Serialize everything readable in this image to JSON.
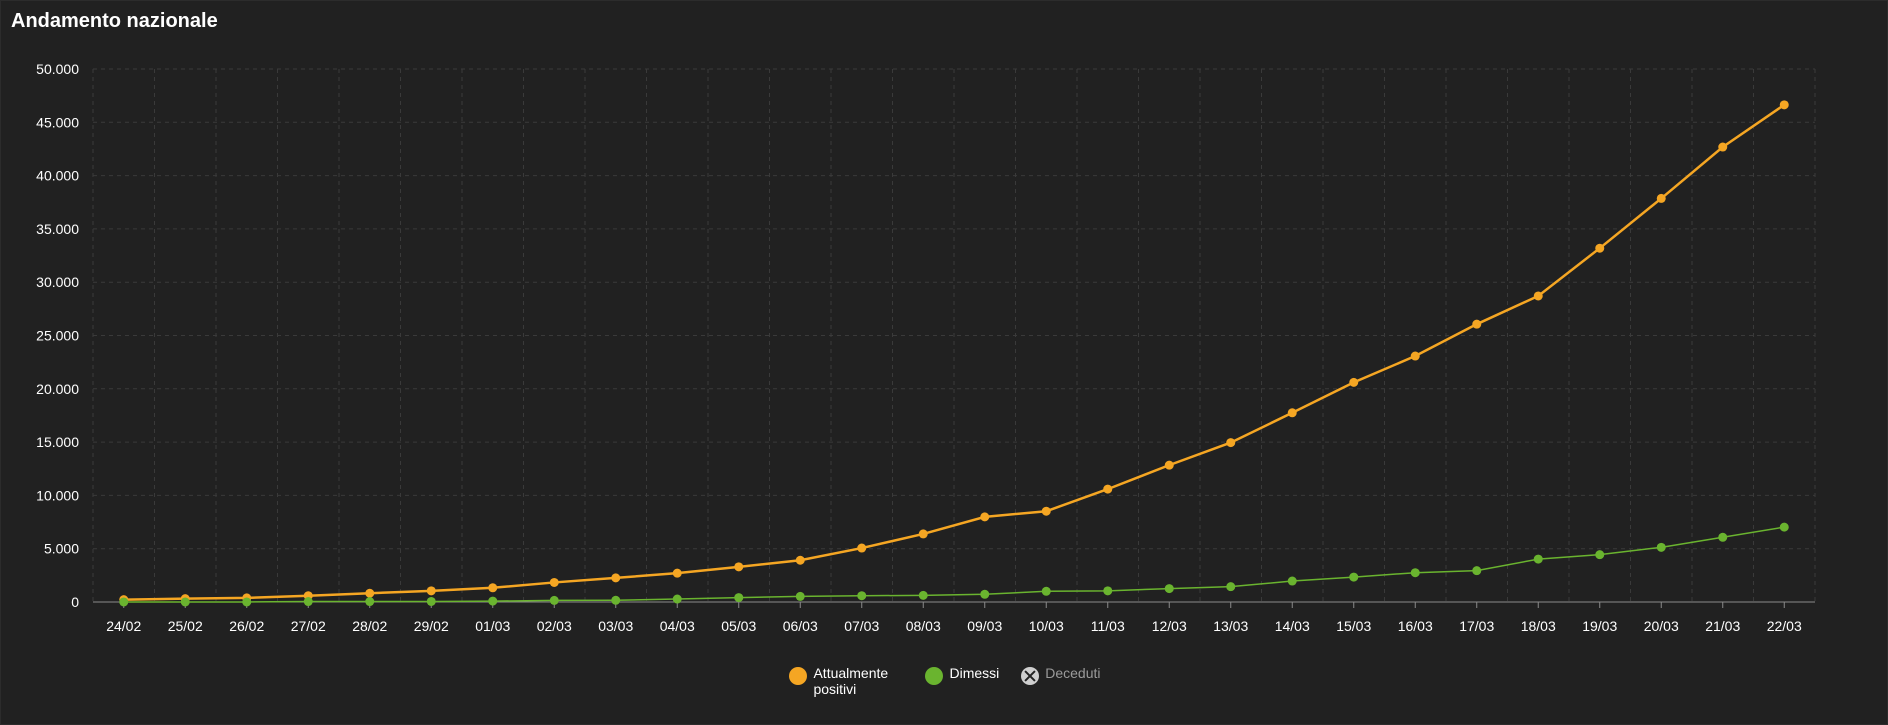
{
  "title": "Andamento nazionale",
  "chart_data": {
    "type": "line",
    "categories": [
      "24/02",
      "25/02",
      "26/02",
      "27/02",
      "28/02",
      "29/02",
      "01/03",
      "02/03",
      "03/03",
      "04/03",
      "05/03",
      "06/03",
      "07/03",
      "08/03",
      "09/03",
      "10/03",
      "11/03",
      "12/03",
      "13/03",
      "14/03",
      "15/03",
      "16/03",
      "17/03",
      "18/03",
      "19/03",
      "20/03",
      "21/03",
      "22/03"
    ],
    "yticks": [
      "0",
      "5.000",
      "10.000",
      "15.000",
      "20.000",
      "25.000",
      "30.000",
      "35.000",
      "40.000",
      "45.000",
      "50.000"
    ],
    "ylim": [
      0,
      50000
    ],
    "grid": true,
    "legend_position": "bottom-center",
    "series": [
      {
        "name": "Attualmente positivi",
        "color": "#f5a623",
        "values": [
          221,
          311,
          385,
          588,
          821,
          1049,
          1335,
          1835,
          2263,
          2706,
          3296,
          3916,
          5061,
          6387,
          7985,
          8514,
          10590,
          12839,
          14955,
          17750,
          20603,
          23073,
          26062,
          28710,
          33190,
          37860,
          42681,
          46638
        ]
      },
      {
        "name": "Dimessi",
        "color": "#6ab42f",
        "values": [
          1,
          1,
          3,
          45,
          46,
          50,
          83,
          149,
          160,
          276,
          414,
          523,
          589,
          622,
          724,
          1004,
          1045,
          1258,
          1439,
          1966,
          2335,
          2749,
          2941,
          4025,
          4440,
          5129,
          6072,
          7024
        ]
      }
    ],
    "legend": [
      {
        "label": "Attualmente positivi",
        "color": "#f5a623",
        "visible": true
      },
      {
        "label": "Dimessi",
        "color": "#6ab42f",
        "visible": true
      },
      {
        "label": "Deceduti",
        "color": "#cfcfcf",
        "visible": false
      }
    ]
  }
}
